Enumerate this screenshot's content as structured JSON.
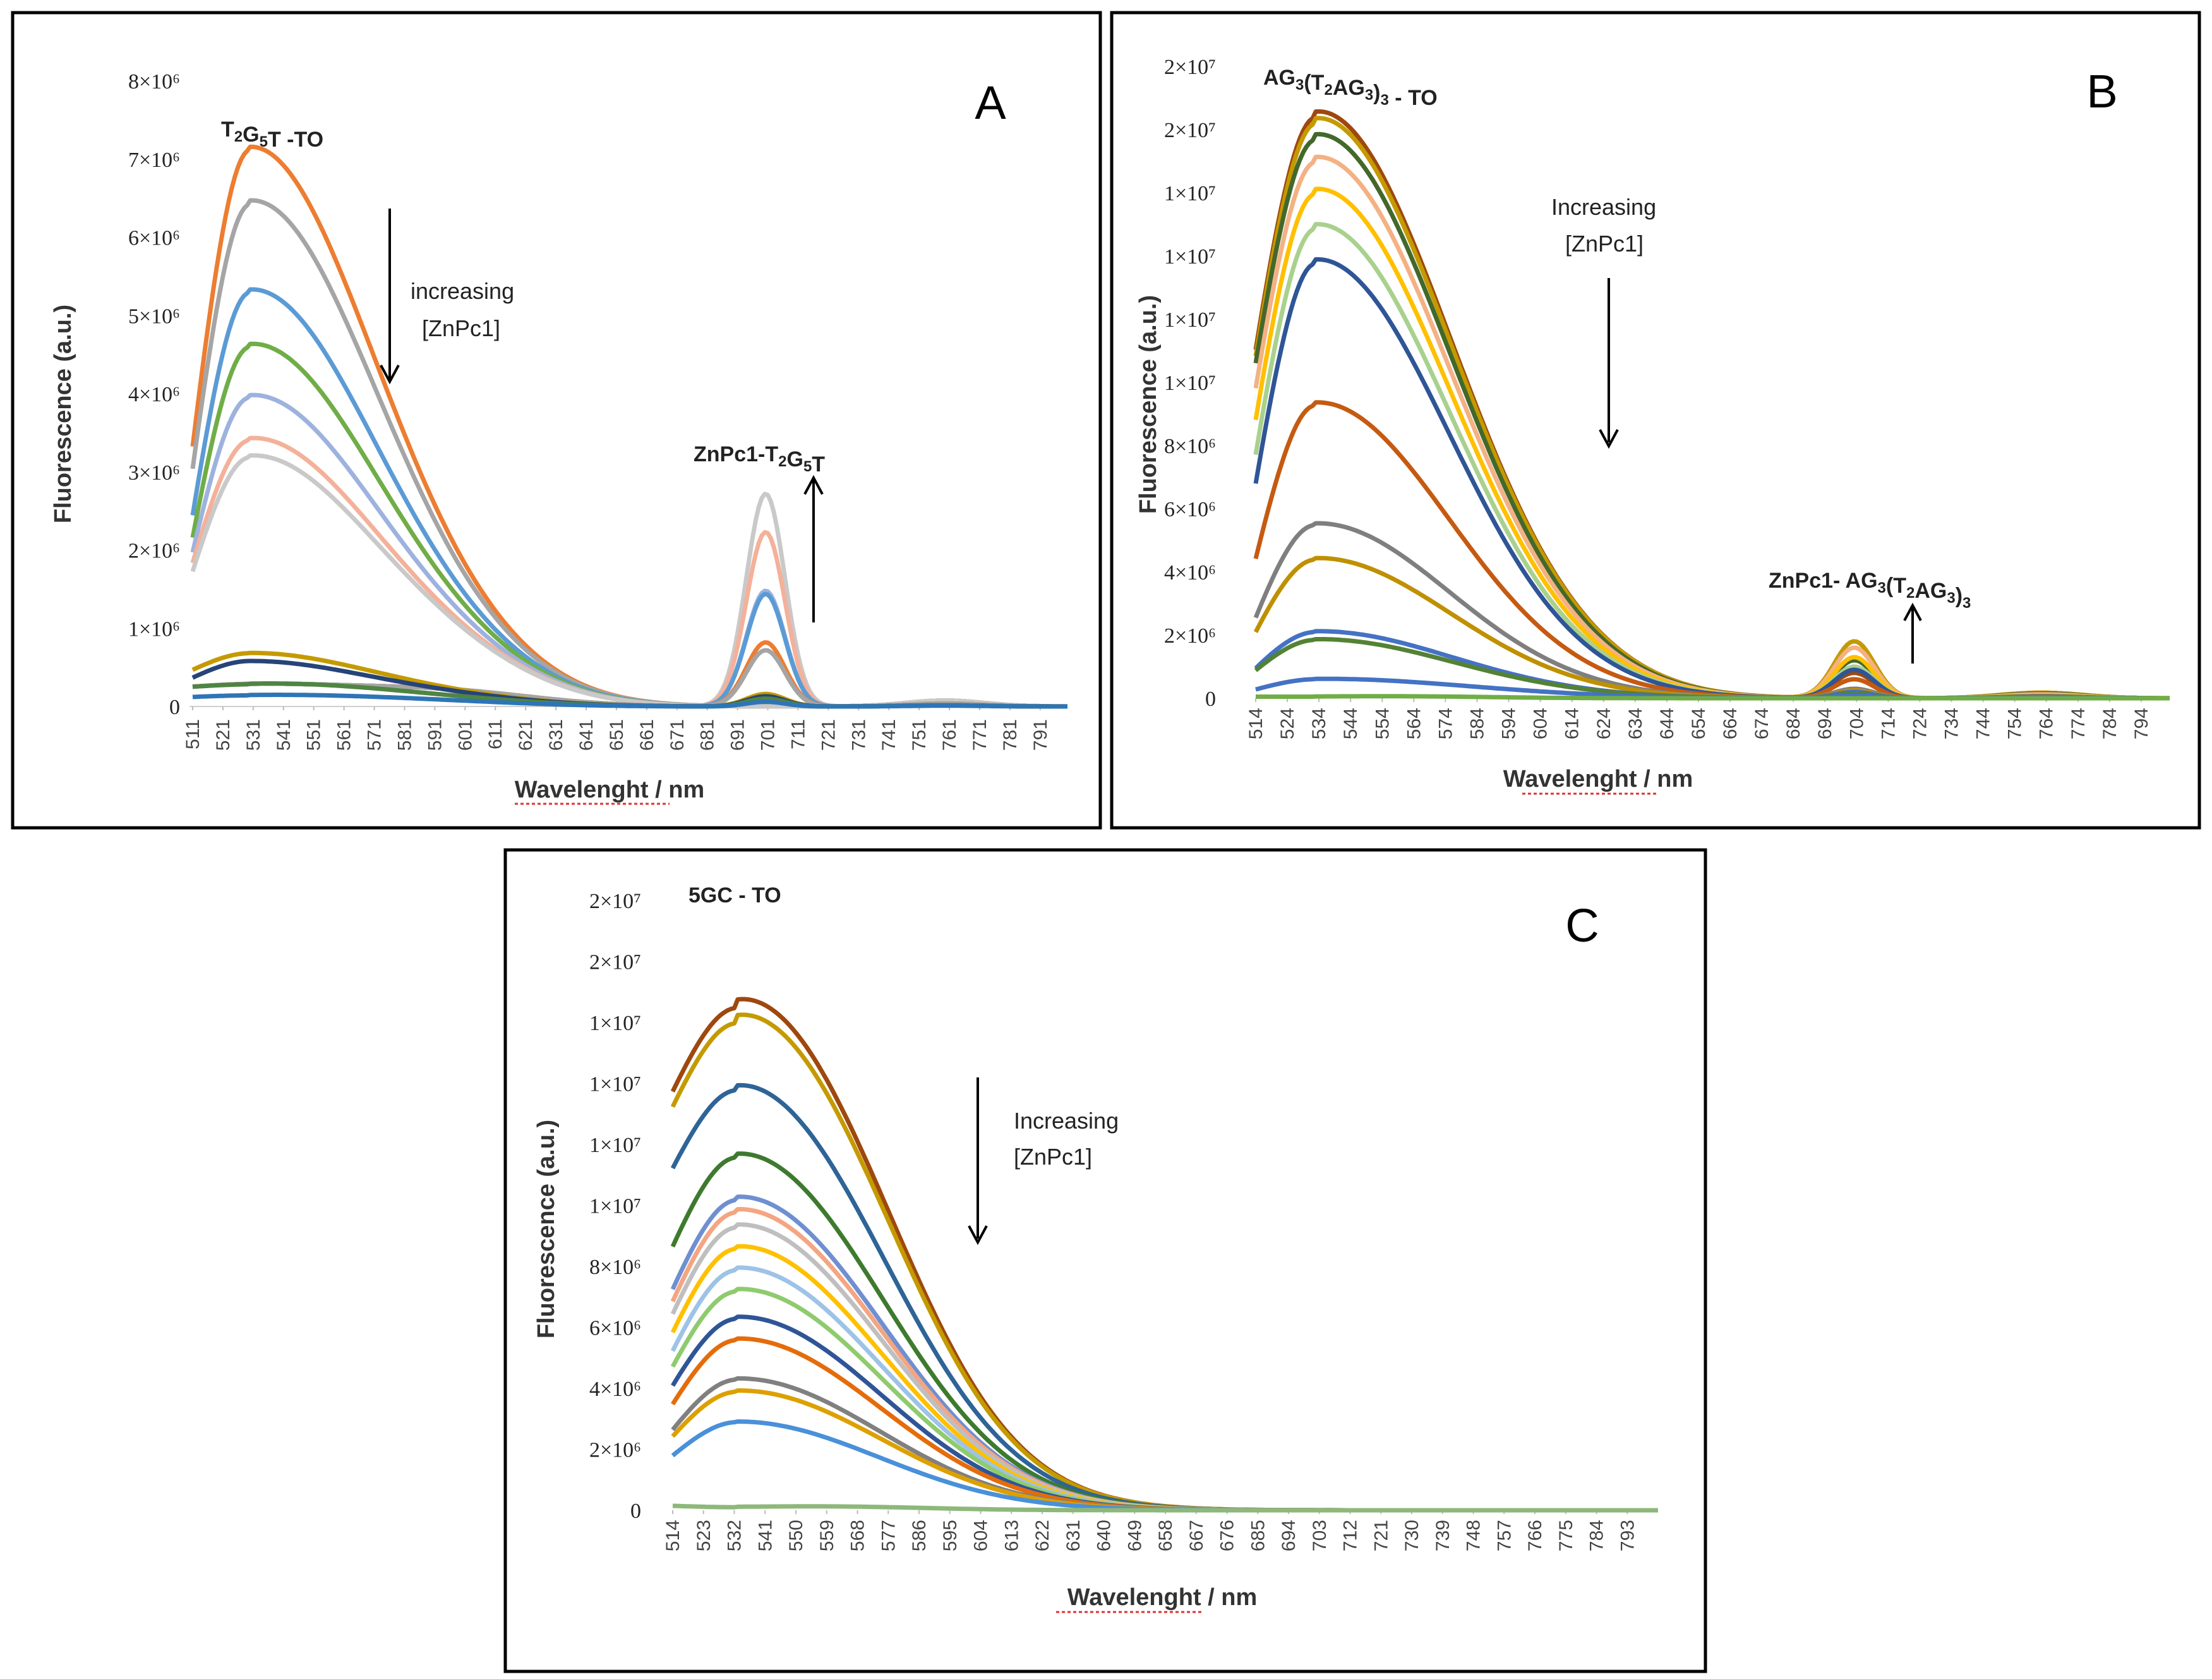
{
  "figure": {
    "description_free": true
  },
  "chart_data": [
    {
      "type": "line",
      "panel_label": "A",
      "title_parts": [
        [
          "T",
          ""
        ],
        [
          "2",
          "sub"
        ],
        [
          "G",
          ""
        ],
        [
          "5",
          "sub"
        ],
        [
          "T -TO",
          ""
        ]
      ],
      "ylabel": "Fluorescence (a.u.)",
      "xlabel": "Wavelenght / nm",
      "x_range": [
        511,
        800
      ],
      "ylim": [
        0,
        8000000
      ],
      "ytick_labels": [
        {
          "value": 0,
          "label": "0"
        },
        {
          "value": 1000000,
          "label": "1×10⁶"
        },
        {
          "value": 2000000,
          "label": "2×10⁶"
        },
        {
          "value": 3000000,
          "label": "3×10⁶"
        },
        {
          "value": 4000000,
          "label": "4×10⁶"
        },
        {
          "value": 5000000,
          "label": "5×10⁶"
        },
        {
          "value": 6000000,
          "label": "6×10⁶"
        },
        {
          "value": 7000000,
          "label": "7×10⁶"
        },
        {
          "value": 8000000,
          "label": "8×10⁶"
        }
      ],
      "xtick_labels": [
        "511",
        "521",
        "531",
        "541",
        "551",
        "561",
        "571",
        "581",
        "591",
        "601",
        "611",
        "621",
        "631",
        "641",
        "651",
        "661",
        "671",
        "681",
        "691",
        "701",
        "711",
        "721",
        "731",
        "741",
        "751",
        "761",
        "771",
        "781",
        "791"
      ],
      "arrow_down_label_lines": [
        "increasing",
        "[ZnPc1]"
      ],
      "arrow_up_label_parts": [
        [
          "ZnPc1-T",
          ""
        ],
        [
          "2",
          "sub"
        ],
        [
          "G",
          ""
        ],
        [
          "5",
          "sub"
        ],
        [
          "T",
          ""
        ]
      ],
      "series": [
        {
          "name": "s1",
          "color": "#ED7D31",
          "start": 3000000,
          "peak": 7130000,
          "shoulder": 4000000,
          "tail": 300000,
          "q": 0
        },
        {
          "name": "s2",
          "color": "#A5A5A5",
          "start": 2750000,
          "peak": 6430000,
          "shoulder": 3750000,
          "tail": 300000,
          "q": 0
        },
        {
          "name": "s3",
          "color": "#5B9BD5",
          "start": 2200000,
          "peak": 5300000,
          "shoulder": 3050000,
          "tail": 300000,
          "q": 0
        },
        {
          "name": "s4",
          "color": "#70AD47",
          "start": 1950000,
          "peak": 4600000,
          "shoulder": 2700000,
          "tail": 300000,
          "q": 0
        },
        {
          "name": "s5",
          "color": "#9DB2DE",
          "start": 1800000,
          "peak": 3950000,
          "shoulder": 2300000,
          "tail": 300000,
          "q": 0
        },
        {
          "name": "s6",
          "color": "#F4B19A",
          "start": 1700000,
          "peak": 3400000,
          "shoulder": 2000000,
          "tail": 300000,
          "q": 0
        },
        {
          "name": "s7",
          "color": "#C9C9C9",
          "start": 1600000,
          "peak": 3180000,
          "shoulder": 1850000,
          "tail": 300000,
          "q": 0
        },
        {
          "name": "s8",
          "color": "#C9C9C9",
          "start": 250000,
          "peak": 280000,
          "shoulder": 150000,
          "tail": 150000,
          "q": 2720000
        },
        {
          "name": "s9",
          "color": "#F4B19A",
          "start": 250000,
          "peak": 280000,
          "shoulder": 150000,
          "tail": 150000,
          "q": 2230000
        },
        {
          "name": "s10",
          "color": "#9DB2DE",
          "start": 250000,
          "peak": 280000,
          "shoulder": 150000,
          "tail": 150000,
          "q": 1480000
        },
        {
          "name": "s11",
          "color": "#5B9BD5",
          "start": 250000,
          "peak": 280000,
          "shoulder": 150000,
          "tail": 150000,
          "q": 1440000
        },
        {
          "name": "s12",
          "color": "#ED7D31",
          "start": 250000,
          "peak": 280000,
          "shoulder": 150000,
          "tail": 150000,
          "q": 820000
        },
        {
          "name": "s13",
          "color": "#A5A5A5",
          "start": 250000,
          "peak": 280000,
          "shoulder": 150000,
          "tail": 150000,
          "q": 720000
        },
        {
          "name": "s14",
          "color": "#C49A00",
          "start": 450000,
          "peak": 680000,
          "shoulder": 380000,
          "tail": 60000,
          "q": 160000
        },
        {
          "name": "s15",
          "color": "#264478",
          "start": 350000,
          "peak": 580000,
          "shoulder": 300000,
          "tail": 60000,
          "q": 130000
        },
        {
          "name": "s16",
          "color": "#4E8542",
          "start": 250000,
          "peak": 280000,
          "shoulder": 230000,
          "tail": 60000,
          "q": 100000
        },
        {
          "name": "s17",
          "color": "#2E75B6",
          "start": 120000,
          "peak": 140000,
          "shoulder": 120000,
          "tail": 40000,
          "q": 60000
        }
      ]
    },
    {
      "type": "line",
      "panel_label": "B",
      "title_parts": [
        [
          "AG",
          ""
        ],
        [
          "3",
          "sub"
        ],
        [
          "(T",
          ""
        ],
        [
          "2",
          "sub"
        ],
        [
          "AG",
          ""
        ],
        [
          "3",
          "sub"
        ],
        [
          ")",
          ""
        ],
        [
          "3",
          "sub"
        ],
        [
          " - TO",
          ""
        ]
      ],
      "ylabel": "Fluorescence (a.u.)",
      "xlabel": "Wavelenght / nm",
      "x_range": [
        514,
        803
      ],
      "ylim": [
        0,
        20000000
      ],
      "ytick_labels": [
        {
          "value": 0,
          "label": "0"
        },
        {
          "value": 2000000,
          "label": "2×10⁶"
        },
        {
          "value": 4000000,
          "label": "4×10⁶"
        },
        {
          "value": 6000000,
          "label": "6×10⁶"
        },
        {
          "value": 8000000,
          "label": "8×10⁶"
        },
        {
          "value": 10000000,
          "label": "1×10⁷"
        },
        {
          "value": 12000000,
          "label": "1×10⁷"
        },
        {
          "value": 14000000,
          "label": "1×10⁷"
        },
        {
          "value": 16000000,
          "label": "1×10⁷"
        },
        {
          "value": 18000000,
          "label": "2×10⁷"
        },
        {
          "value": 20000000,
          "label": "2×10⁷"
        }
      ],
      "xtick_labels": [
        "514",
        "524",
        "534",
        "544",
        "554",
        "564",
        "574",
        "584",
        "594",
        "604",
        "614",
        "624",
        "634",
        "644",
        "654",
        "664",
        "674",
        "684",
        "694",
        "704",
        "714",
        "724",
        "734",
        "744",
        "754",
        "764",
        "774",
        "784",
        "794"
      ],
      "arrow_down_label_lines": [
        "Increasing",
        "[ZnPc1]"
      ],
      "arrow_up_label_parts": [
        [
          "ZnPc1- AG",
          ""
        ],
        [
          "3",
          "sub"
        ],
        [
          "(T",
          ""
        ],
        [
          "2",
          "sub"
        ],
        [
          "AG",
          ""
        ],
        [
          "3",
          "sub"
        ],
        [
          ")",
          ""
        ],
        [
          "3",
          "sub"
        ]
      ],
      "series": [
        {
          "name": "s1",
          "color": "#9E480E",
          "start": 10400000,
          "peak": 18400000,
          "shoulder": 11300000,
          "tail": 700000,
          "q": 800000
        },
        {
          "name": "s2",
          "color": "#C49A00",
          "start": 10200000,
          "peak": 18200000,
          "shoulder": 11100000,
          "tail": 700000,
          "q": 1800000
        },
        {
          "name": "s3",
          "color": "#43682B",
          "start": 10000000,
          "peak": 17700000,
          "shoulder": 10800000,
          "tail": 600000,
          "q": 1200000
        },
        {
          "name": "s4",
          "color": "#F4B183",
          "start": 9200000,
          "peak": 17000000,
          "shoulder": 10300000,
          "tail": 500000,
          "q": 1600000
        },
        {
          "name": "s5",
          "color": "#FFC000",
          "start": 8200000,
          "peak": 16000000,
          "shoulder": 9700000,
          "tail": 400000,
          "q": 1300000
        },
        {
          "name": "s6",
          "color": "#A9D18E",
          "start": 7100000,
          "peak": 14900000,
          "shoulder": 9000000,
          "tail": 300000,
          "q": 1000000
        },
        {
          "name": "s7",
          "color": "#2F5597",
          "start": 6200000,
          "peak": 13800000,
          "shoulder": 8300000,
          "tail": 250000,
          "q": 900000
        },
        {
          "name": "s8",
          "color": "#C55A11",
          "start": 4000000,
          "peak": 9300000,
          "shoulder": 5600000,
          "tail": 200000,
          "q": 600000
        },
        {
          "name": "s9",
          "color": "#7F7F7F",
          "start": 2300000,
          "peak": 5500000,
          "shoulder": 3300000,
          "tail": 150000,
          "q": 300000
        },
        {
          "name": "s10",
          "color": "#BF9000",
          "start": 1900000,
          "peak": 4400000,
          "shoulder": 2700000,
          "tail": 120000,
          "q": 250000
        },
        {
          "name": "s11",
          "color": "#4472C4",
          "start": 850000,
          "peak": 2100000,
          "shoulder": 1300000,
          "tail": 100000,
          "q": 200000
        },
        {
          "name": "s12",
          "color": "#548235",
          "start": 800000,
          "peak": 1850000,
          "shoulder": 1150000,
          "tail": 100000,
          "q": 150000
        },
        {
          "name": "s13",
          "color": "#4472C4",
          "start": 250000,
          "peak": 600000,
          "shoulder": 420000,
          "tail": 80000,
          "q": 100000
        },
        {
          "name": "s14",
          "color": "#70AD47",
          "start": 50000,
          "peak": 50000,
          "shoulder": 100000,
          "tail": 0,
          "q": 0
        }
      ]
    },
    {
      "type": "line",
      "panel_label": "C",
      "title_parts": [
        [
          "5GC - TO",
          ""
        ]
      ],
      "ylabel": "Fluorescence (a.u.)",
      "xlabel": "Wavelenght / nm",
      "x_range": [
        514,
        802
      ],
      "ylim": [
        0,
        20000000
      ],
      "ytick_labels": [
        {
          "value": 0,
          "label": "0"
        },
        {
          "value": 2000000,
          "label": "2×10⁶"
        },
        {
          "value": 4000000,
          "label": "4×10⁶"
        },
        {
          "value": 6000000,
          "label": "6×10⁶"
        },
        {
          "value": 8000000,
          "label": "8×10⁶"
        },
        {
          "value": 10000000,
          "label": "1×10⁷"
        },
        {
          "value": 12000000,
          "label": "1×10⁷"
        },
        {
          "value": 14000000,
          "label": "1×10⁷"
        },
        {
          "value": 16000000,
          "label": "1×10⁷"
        },
        {
          "value": 18000000,
          "label": "2×10⁷"
        },
        {
          "value": 20000000,
          "label": "2×10⁷"
        }
      ],
      "xtick_labels": [
        "514",
        "523",
        "532",
        "541",
        "550",
        "559",
        "568",
        "577",
        "586",
        "595",
        "604",
        "613",
        "622",
        "631",
        "640",
        "649",
        "658",
        "667",
        "676",
        "685",
        "694",
        "703",
        "712",
        "721",
        "730",
        "739",
        "748",
        "757",
        "766",
        "775",
        "784",
        "793"
      ],
      "arrow_down_label_lines": [
        "Increasing",
        "[ZnPc1]"
      ],
      "series": [
        {
          "name": "s1",
          "color": "#9E480E",
          "start": 13500000,
          "peak": 16500000,
          "shoulder": 11500000,
          "tail": 0,
          "q": 0
        },
        {
          "name": "s2",
          "color": "#C49A00",
          "start": 13000000,
          "peak": 16000000,
          "shoulder": 11100000,
          "tail": 0,
          "q": 0
        },
        {
          "name": "s3",
          "color": "#2E6496",
          "start": 11000000,
          "peak": 13800000,
          "shoulder": 8900000,
          "tail": 0,
          "q": 0
        },
        {
          "name": "s4",
          "color": "#3E7A2E",
          "start": 8400000,
          "peak": 11600000,
          "shoulder": 7300000,
          "tail": 0,
          "q": 0
        },
        {
          "name": "s5",
          "color": "#6F8FD0",
          "start": 7000000,
          "peak": 10200000,
          "shoulder": 6400000,
          "tail": 0,
          "q": 0
        },
        {
          "name": "s6",
          "color": "#F4A582",
          "start": 6600000,
          "peak": 9800000,
          "shoulder": 6100000,
          "tail": 0,
          "q": 0
        },
        {
          "name": "s7",
          "color": "#BFBFBF",
          "start": 6200000,
          "peak": 9300000,
          "shoulder": 5800000,
          "tail": 0,
          "q": 0
        },
        {
          "name": "s8",
          "color": "#FFC000",
          "start": 5600000,
          "peak": 8600000,
          "shoulder": 5300000,
          "tail": 0,
          "q": 0
        },
        {
          "name": "s9",
          "color": "#9DC3E6",
          "start": 5000000,
          "peak": 7900000,
          "shoulder": 4900000,
          "tail": 0,
          "q": 0
        },
        {
          "name": "s10",
          "color": "#8FCB6E",
          "start": 4500000,
          "peak": 7200000,
          "shoulder": 4500000,
          "tail": 0,
          "q": 0
        },
        {
          "name": "s11",
          "color": "#2F5597",
          "start": 3900000,
          "peak": 6300000,
          "shoulder": 3900000,
          "tail": 0,
          "q": 0
        },
        {
          "name": "s12",
          "color": "#E46C0A",
          "start": 3300000,
          "peak": 5600000,
          "shoulder": 3400000,
          "tail": 0,
          "q": 0
        },
        {
          "name": "s13",
          "color": "#808080",
          "start": 2500000,
          "peak": 4300000,
          "shoulder": 2600000,
          "tail": 0,
          "q": 0
        },
        {
          "name": "s14",
          "color": "#DDA000",
          "start": 2300000,
          "peak": 3900000,
          "shoulder": 2400000,
          "tail": 0,
          "q": 0
        },
        {
          "name": "s15",
          "color": "#4A90D9",
          "start": 1700000,
          "peak": 2900000,
          "shoulder": 1700000,
          "tail": 0,
          "q": 0
        },
        {
          "name": "s16",
          "color": "#8DB87A",
          "start": 150000,
          "peak": 100000,
          "shoulder": 200000,
          "tail": 0,
          "q": 0
        }
      ]
    }
  ]
}
